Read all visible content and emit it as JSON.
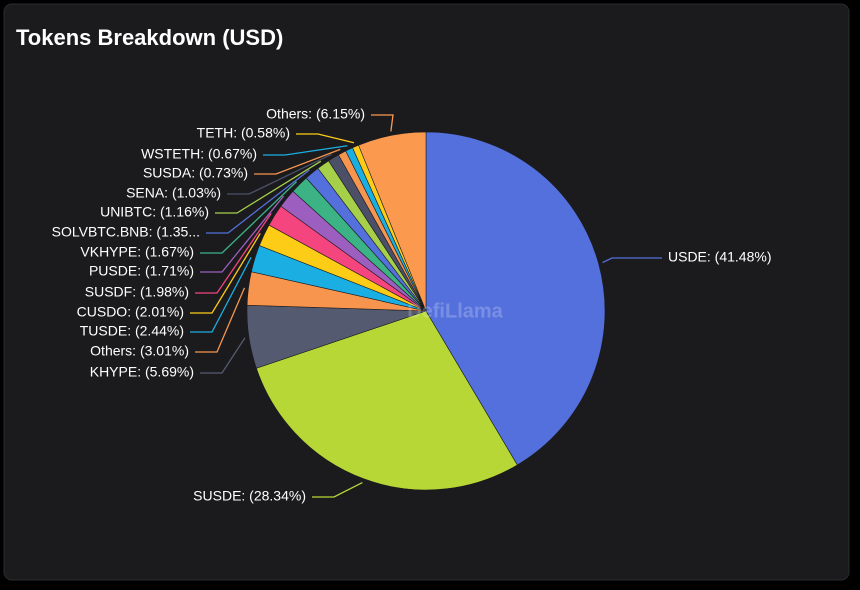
{
  "chart_data": {
    "type": "pie",
    "title": "Tokens Breakdown (USD)",
    "watermark": "DefiLlama",
    "values": [
      41.48,
      28.34,
      5.69,
      3.01,
      2.44,
      2.01,
      1.98,
      1.71,
      1.67,
      1.35,
      1.16,
      1.03,
      0.73,
      0.67,
      0.58,
      6.15
    ],
    "value_labels": [
      "USDE: (41.48%)",
      "SUSDE: (28.34%)",
      "KHYPE: (5.69%)",
      "Others: (3.01%)",
      "TUSDE: (2.44%)",
      "CUSDO: (2.01%)",
      "SUSDF: (1.98%)",
      "PUSDE: (1.71%)",
      "VKHYPE: (1.67%)",
      "SOLVBTC.BNB: (1.35...",
      "UNIBTC: (1.16%)",
      "SENA: (1.03%)",
      "SUSDA: (0.73%)",
      "WSTETH: (0.67%)",
      "TETH: (0.58%)",
      "Others: (6.15%)"
    ],
    "colors": [
      "#5470dc",
      "#b7d736",
      "#545a70",
      "#f7954f",
      "#1aaee2",
      "#fdcc17",
      "#f5457e",
      "#9c5fbf",
      "#3bb384",
      "#5470dc",
      "#a6cf4a",
      "#4b5068",
      "#f7954f",
      "#1aaee2",
      "#fdcc17",
      "#fb9a4f"
    ]
  }
}
